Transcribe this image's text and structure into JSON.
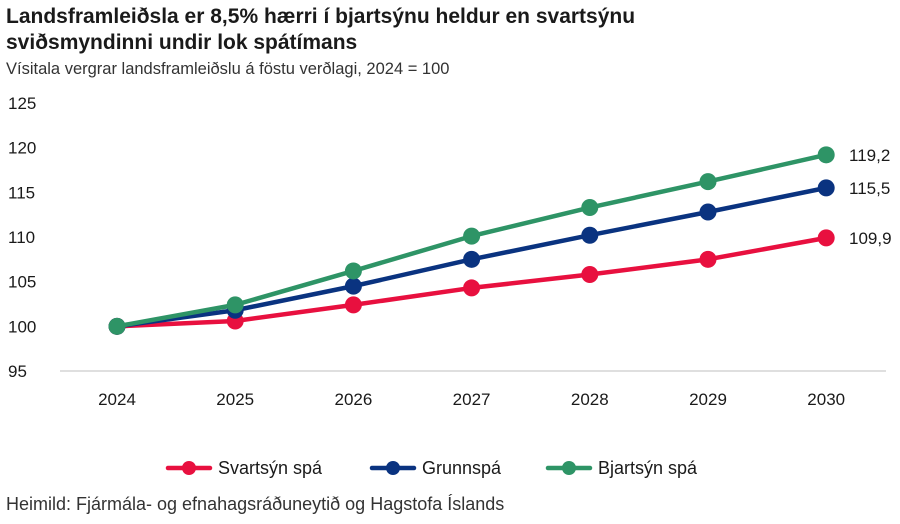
{
  "title_line1": "Landsframleiðsla er 8,5% hærri í bjartsýnu heldur en svartsýnu",
  "title_line2": "sviðsmyndinni undir lok spátímans",
  "subtitle": "Vísitala vergrar landsframleiðslu á föstu verðlagi, 2024 = 100",
  "source": "Heimild: Fjármála- og efnahagsráðuneytið og Hagstofa Íslands",
  "chart_data": {
    "type": "line",
    "title": "Landsframleiðsla er 8,5% hærri í bjartsýnu heldur en svartsýnu sviðsmyndinni undir lok spátímans",
    "subtitle": "Vísitala vergrar landsframleiðslu á föstu verðlagi, 2024 = 100",
    "xlabel": "",
    "ylabel": "",
    "x": [
      "2024",
      "2025",
      "2026",
      "2027",
      "2028",
      "2029",
      "2030"
    ],
    "ylim": [
      95,
      125
    ],
    "yticks": [
      95,
      100,
      105,
      110,
      115,
      120,
      125
    ],
    "grid": false,
    "legend_position": "bottom",
    "series": [
      {
        "name": "Svartsýn spá",
        "color": "#e8103f",
        "values": [
          100,
          100.6,
          102.4,
          104.3,
          105.8,
          107.5,
          109.9
        ],
        "end_label": "109,9"
      },
      {
        "name": "Grunnspá",
        "color": "#0a3380",
        "values": [
          100,
          101.8,
          104.5,
          107.5,
          110.2,
          112.8,
          115.5
        ],
        "end_label": "115,5"
      },
      {
        "name": "Bjartsýn spá",
        "color": "#2e9466",
        "values": [
          100,
          102.4,
          106.2,
          110.1,
          113.3,
          116.2,
          119.2
        ],
        "end_label": "119,2"
      }
    ]
  }
}
